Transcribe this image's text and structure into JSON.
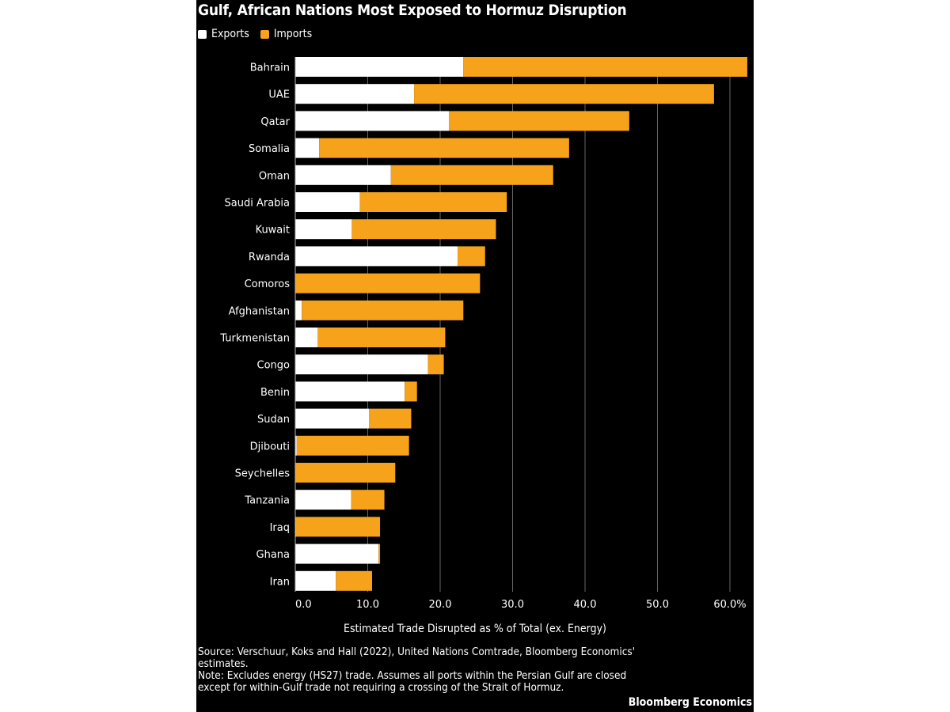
{
  "chart_data": {
    "type": "bar",
    "orientation": "horizontal",
    "stacked": true,
    "title": "Gulf, African Nations Most Exposed to Hormuz Disruption",
    "xlabel": "Estimated Trade Disrupted as % of Total (ex. Energy)",
    "xlim": [
      0,
      62.5
    ],
    "xticks": [
      "0.0",
      "10.0",
      "20.0",
      "30.0",
      "40.0",
      "50.0",
      "60.0%"
    ],
    "grid": true,
    "legend_position": "top-left",
    "categories": [
      "Bahrain",
      "UAE",
      "Qatar",
      "Somalia",
      "Oman",
      "Saudi Arabia",
      "Kuwait",
      "Rwanda",
      "Comoros",
      "Afghanistan",
      "Turkmenistan",
      "Congo",
      "Benin",
      "Sudan",
      "Djibouti",
      "Seychelles",
      "Tanzania",
      "Iraq",
      "Ghana",
      "Iran"
    ],
    "series": [
      {
        "name": "Exports",
        "color": "#ffffff",
        "values": [
          23.2,
          16.4,
          21.2,
          3.3,
          13.2,
          8.9,
          7.8,
          22.4,
          0,
          0.9,
          3.1,
          18.3,
          15.1,
          10.2,
          0.2,
          0,
          7.7,
          0.1,
          11.5,
          5.6
        ]
      },
      {
        "name": "Imports",
        "color": "#f6a31b",
        "values": [
          39.2,
          41.4,
          24.9,
          34.5,
          22.4,
          20.3,
          19.9,
          3.8,
          25.5,
          22.3,
          17.6,
          2.2,
          1.7,
          5.8,
          15.5,
          13.8,
          4.6,
          11.6,
          0.2,
          5.0
        ]
      }
    ]
  },
  "notes": {
    "source": "Source: Verschuur, Koks and Hall (2022), United Nations Comtrade, Bloomberg Economics' estimates.",
    "note": "Note: Excludes energy (HS27) trade. Assumes all ports within the Persian Gulf are closed except for within-Gulf trade not requiring a crossing of the Strait of Hormuz."
  },
  "brand": "Bloomberg Economics"
}
